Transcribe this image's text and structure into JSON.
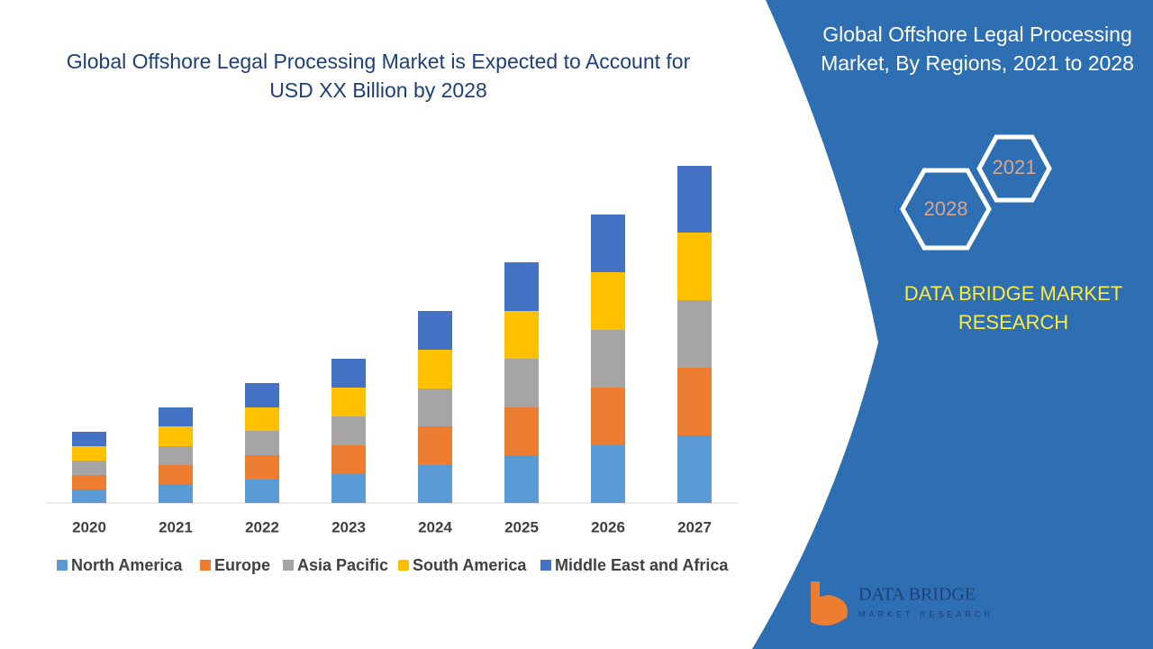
{
  "chart_data": {
    "type": "stacked_bar",
    "title": "Global Offshore Legal Processing Market is Expected to Account for USD XX Billion by 2028",
    "categories": [
      "2020",
      "2021",
      "2022",
      "2023",
      "2024",
      "2025",
      "2026",
      "2027"
    ],
    "series": [
      {
        "name": "North America",
        "color": "#5b9bd5",
        "values": [
          15,
          21,
          26,
          32,
          42,
          53,
          64,
          75
        ]
      },
      {
        "name": "Europe",
        "color": "#ed7d31",
        "values": [
          16,
          21,
          27,
          32,
          43,
          53,
          64,
          75
        ]
      },
      {
        "name": "Asia Pacific",
        "color": "#a5a5a5",
        "values": [
          16,
          21,
          27,
          32,
          42,
          54,
          64,
          75
        ]
      },
      {
        "name": "South America",
        "color": "#ffc000",
        "values": [
          16,
          22,
          26,
          32,
          43,
          53,
          64,
          75
        ]
      },
      {
        "name": "Middle East and Africa",
        "color": "#4472c4",
        "values": [
          16,
          21,
          27,
          32,
          43,
          54,
          64,
          74
        ]
      }
    ],
    "ylim": [
      0,
      400
    ],
    "grid": false,
    "legend": "bottom"
  },
  "side_panel": {
    "title": "Global Offshore Legal Processing Market, By Regions, 2021 to 2028",
    "hex_years": [
      "2021",
      "2028"
    ],
    "brand": "DATA BRIDGE MARKET RESEARCH",
    "logo_name": "DATA BRIDGE",
    "logo_tagline": "MARKET RESEARCH"
  }
}
